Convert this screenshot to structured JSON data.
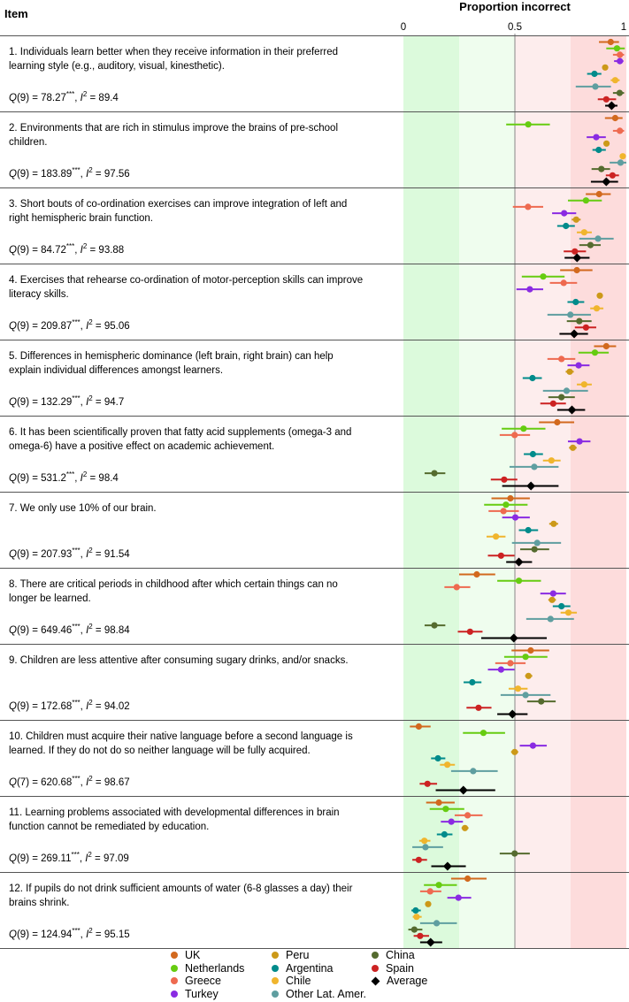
{
  "header": {
    "item_label": "Item",
    "title": "Proportion incorrect",
    "ticks": [
      "0",
      "0.5",
      "1"
    ]
  },
  "chart_data": {
    "type": "forest",
    "title": "Proportion incorrect",
    "xlim": [
      0,
      1
    ],
    "xticks": [
      0,
      0.5,
      1
    ],
    "bands": [
      {
        "range": [
          0,
          0.25
        ],
        "color": "#dcfadc"
      },
      {
        "range": [
          0.25,
          0.5
        ],
        "color": "#effdee"
      },
      {
        "range": [
          0.5,
          0.75
        ],
        "color": "#fdeded"
      },
      {
        "range": [
          0.75,
          1
        ],
        "color": "#fddcdc"
      }
    ],
    "legend_position": "bottom",
    "series": [
      {
        "name": "UK",
        "color": "#d2691e",
        "marker": "circle"
      },
      {
        "name": "Netherlands",
        "color": "#66cc11",
        "marker": "circle"
      },
      {
        "name": "Greece",
        "color": "#ee6a50",
        "marker": "circle"
      },
      {
        "name": "Turkey",
        "color": "#8a2be2",
        "marker": "circle"
      },
      {
        "name": "Peru",
        "color": "#cc9918",
        "marker": "circle"
      },
      {
        "name": "Argentina",
        "color": "#008b8b",
        "marker": "circle"
      },
      {
        "name": "Chile",
        "color": "#f0b52d",
        "marker": "circle"
      },
      {
        "name": "Other Lat. Amer.",
        "color": "#5f9ea0",
        "marker": "circle"
      },
      {
        "name": "China",
        "color": "#556b2f",
        "marker": "circle"
      },
      {
        "name": "Spain",
        "color": "#cc2222",
        "marker": "circle"
      },
      {
        "name": "Average",
        "color": "#000000",
        "marker": "diamond"
      }
    ],
    "items": [
      {
        "text": "1. Individuals learn better when they receive information in their preferred learning style (e.g., auditory, visual, kinesthetic).",
        "df": "9",
        "q": "78.27",
        "stars": "***",
        "i2": "89.4",
        "values": [
          [
            0.93,
            0.877,
            0.967
          ],
          [
            0.958,
            0.91,
            0.993
          ],
          [
            0.971,
            0.94,
            0.99
          ],
          [
            0.971,
            0.945,
            0.987
          ],
          [
            0.905,
            0.895,
            0.915
          ],
          [
            0.857,
            0.824,
            0.888
          ],
          [
            0.95,
            0.93,
            0.97
          ],
          [
            0.861,
            0.773,
            0.931
          ],
          [
            0.97,
            0.94,
            0.99
          ],
          [
            0.91,
            0.872,
            0.954
          ],
          [
            0.934,
            0.905,
            0.96
          ]
        ]
      },
      {
        "text": "2. Environments that are rich in stimulus improve the brains of pre-school children.",
        "df": "9",
        "q": "183.89",
        "stars": "***",
        "i2": "97.56",
        "values": [
          [
            0.95,
            0.904,
            0.983
          ],
          [
            0.56,
            0.461,
            0.657
          ],
          [
            0.971,
            0.94,
            0.99
          ],
          [
            0.865,
            0.822,
            0.908
          ],
          [
            0.911,
            0.9,
            0.922
          ],
          [
            0.876,
            0.848,
            0.908
          ],
          [
            0.984,
            0.974,
            0.993
          ],
          [
            0.974,
            0.925,
            1.0
          ],
          [
            0.888,
            0.844,
            0.927
          ],
          [
            0.938,
            0.908,
            0.967
          ],
          [
            0.91,
            0.841,
            0.963
          ]
        ]
      },
      {
        "text": "3. Short bouts of co-ordination exercises can improve integration of left and right hemispheric brain function.",
        "df": "9",
        "q": "84.72",
        "stars": "***",
        "i2": "93.88",
        "values": [
          [
            0.878,
            0.818,
            0.93
          ],
          [
            0.819,
            0.738,
            0.89
          ],
          [
            0.559,
            0.491,
            0.627
          ],
          [
            0.721,
            0.667,
            0.775
          ],
          [
            0.775,
            0.755,
            0.795
          ],
          [
            0.729,
            0.69,
            0.769
          ],
          [
            0.811,
            0.778,
            0.845
          ],
          [
            0.873,
            0.789,
            0.943
          ],
          [
            0.839,
            0.789,
            0.885
          ],
          [
            0.769,
            0.719,
            0.819
          ],
          [
            0.779,
            0.723,
            0.835
          ]
        ]
      },
      {
        "text": "4. Exercises that rehearse co-ordination of motor-perception skills can improve literacy skills.",
        "df": "9",
        "q": "209.87",
        "stars": "***",
        "i2": "95.06",
        "values": [
          [
            0.778,
            0.703,
            0.848
          ],
          [
            0.627,
            0.531,
            0.723
          ],
          [
            0.719,
            0.657,
            0.779
          ],
          [
            0.567,
            0.507,
            0.627
          ],
          [
            0.881,
            0.868,
            0.894
          ],
          [
            0.773,
            0.736,
            0.811
          ],
          [
            0.867,
            0.838,
            0.897
          ],
          [
            0.749,
            0.646,
            0.841
          ],
          [
            0.789,
            0.733,
            0.844
          ],
          [
            0.819,
            0.769,
            0.865
          ],
          [
            0.766,
            0.7,
            0.828
          ]
        ]
      },
      {
        "text": "5. Differences in hemispheric dominance (left brain, right brain) can help explain individual differences amongst learners.",
        "df": "9",
        "q": "132.29",
        "stars": "***",
        "i2": "94.7",
        "values": [
          [
            0.91,
            0.855,
            0.954
          ],
          [
            0.859,
            0.785,
            0.921
          ],
          [
            0.709,
            0.646,
            0.771
          ],
          [
            0.786,
            0.736,
            0.835
          ],
          [
            0.746,
            0.728,
            0.764
          ],
          [
            0.579,
            0.535,
            0.621
          ],
          [
            0.811,
            0.778,
            0.845
          ],
          [
            0.732,
            0.626,
            0.828
          ],
          [
            0.709,
            0.65,
            0.769
          ],
          [
            0.672,
            0.614,
            0.729
          ],
          [
            0.756,
            0.69,
            0.815
          ]
        ]
      },
      {
        "text": "6. It has been scientifically proven that fatty acid supplements (omega-3 and omega-6) have a positive effect on academic achievement.",
        "df": "9",
        "q": "531.2",
        "stars": "***",
        "i2": "98.4",
        "values": [
          [
            0.69,
            0.608,
            0.766
          ],
          [
            0.539,
            0.441,
            0.637
          ],
          [
            0.499,
            0.432,
            0.568
          ],
          [
            0.79,
            0.738,
            0.839
          ],
          [
            0.76,
            0.743,
            0.777
          ],
          [
            0.581,
            0.54,
            0.626
          ],
          [
            0.664,
            0.626,
            0.705
          ],
          [
            0.587,
            0.476,
            0.696
          ],
          [
            0.139,
            0.095,
            0.188
          ],
          [
            0.452,
            0.392,
            0.511
          ],
          [
            0.572,
            0.443,
            0.696
          ]
        ]
      },
      {
        "text": "7. We only use 10% of our brain.",
        "df": "9",
        "q": "207.93",
        "stars": "***",
        "i2": "91.54",
        "values": [
          [
            0.48,
            0.395,
            0.567
          ],
          [
            0.46,
            0.362,
            0.557
          ],
          [
            0.449,
            0.382,
            0.518
          ],
          [
            0.502,
            0.443,
            0.567
          ],
          [
            0.674,
            0.654,
            0.694
          ],
          [
            0.56,
            0.518,
            0.604
          ],
          [
            0.415,
            0.373,
            0.458
          ],
          [
            0.6,
            0.487,
            0.707
          ],
          [
            0.588,
            0.524,
            0.654
          ],
          [
            0.438,
            0.379,
            0.498
          ],
          [
            0.518,
            0.461,
            0.577
          ]
        ]
      },
      {
        "text": "8. There are critical periods in childhood after which certain things can no longer be learned.",
        "df": "9",
        "q": "649.46",
        "stars": "***",
        "i2": "98.84",
        "values": [
          [
            0.329,
            0.25,
            0.412
          ],
          [
            0.518,
            0.421,
            0.617
          ],
          [
            0.239,
            0.184,
            0.3
          ],
          [
            0.672,
            0.614,
            0.729
          ],
          [
            0.667,
            0.65,
            0.684
          ],
          [
            0.709,
            0.67,
            0.749
          ],
          [
            0.74,
            0.705,
            0.778
          ],
          [
            0.66,
            0.551,
            0.765
          ],
          [
            0.139,
            0.095,
            0.188
          ],
          [
            0.299,
            0.244,
            0.355
          ],
          [
            0.495,
            0.349,
            0.643
          ]
        ]
      },
      {
        "text": "9. Children are less attentive after consuming sugary drinks, and/or snacks.",
        "df": "9",
        "q": "172.68",
        "stars": "***",
        "i2": "94.02",
        "values": [
          [
            0.571,
            0.485,
            0.654
          ],
          [
            0.548,
            0.452,
            0.646
          ],
          [
            0.48,
            0.412,
            0.548
          ],
          [
            0.438,
            0.379,
            0.498
          ],
          [
            0.561,
            0.546,
            0.578
          ],
          [
            0.309,
            0.27,
            0.35
          ],
          [
            0.514,
            0.472,
            0.557
          ],
          [
            0.548,
            0.436,
            0.66
          ],
          [
            0.618,
            0.555,
            0.683
          ],
          [
            0.337,
            0.283,
            0.395
          ],
          [
            0.489,
            0.421,
            0.557
          ]
        ]
      },
      {
        "text": "10. Children must acquire their native language before a second language is learned. If they do not do so neither language will be fully acquired.",
        "df": "7",
        "q": "620.68",
        "stars": "***",
        "i2": "98.67",
        "values": [
          [
            0.069,
            0.029,
            0.122
          ],
          [
            0.359,
            0.267,
            0.456
          ],
          null,
          [
            0.581,
            0.522,
            0.643
          ],
          [
            0.499,
            0.483,
            0.515
          ],
          [
            0.155,
            0.124,
            0.188
          ],
          [
            0.197,
            0.164,
            0.231
          ],
          [
            0.313,
            0.214,
            0.423
          ],
          null,
          [
            0.108,
            0.073,
            0.151
          ],
          [
            0.269,
            0.145,
            0.412
          ]
        ]
      },
      {
        "text": "11. Learning problems associated with developmental differences in brain function cannot be remediated by education.",
        "df": "9",
        "q": "269.11",
        "stars": "***",
        "i2": "97.09",
        "values": [
          [
            0.159,
            0.102,
            0.23
          ],
          [
            0.19,
            0.118,
            0.273
          ],
          [
            0.288,
            0.23,
            0.355
          ],
          [
            0.215,
            0.168,
            0.267
          ],
          [
            0.276,
            0.261,
            0.292
          ],
          [
            0.184,
            0.15,
            0.22
          ],
          [
            0.094,
            0.071,
            0.121
          ],
          [
            0.099,
            0.04,
            0.178
          ],
          [
            0.499,
            0.432,
            0.567
          ],
          [
            0.069,
            0.04,
            0.106
          ],
          [
            0.198,
            0.125,
            0.28
          ]
        ]
      },
      {
        "text": "12. If pupils do not drink sufficient amounts of water (6-8 glasses a day) their brains shrink.",
        "df": "9",
        "q": "124.94",
        "stars": "***",
        "i2": "95.15",
        "values": [
          [
            0.288,
            0.214,
            0.373
          ],
          [
            0.159,
            0.092,
            0.24
          ],
          [
            0.12,
            0.075,
            0.17
          ],
          [
            0.247,
            0.197,
            0.304
          ],
          [
            0.111,
            0.1,
            0.122
          ],
          [
            0.055,
            0.036,
            0.078
          ],
          [
            0.059,
            0.042,
            0.082
          ],
          [
            0.149,
            0.075,
            0.24
          ],
          [
            0.049,
            0.022,
            0.085
          ],
          [
            0.075,
            0.046,
            0.115
          ],
          [
            0.122,
            0.075,
            0.174
          ]
        ]
      }
    ]
  }
}
